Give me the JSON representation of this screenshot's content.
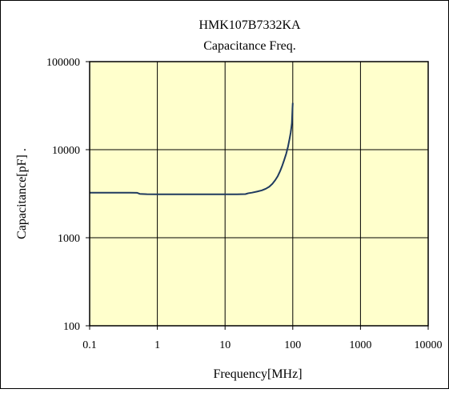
{
  "chart_data": {
    "type": "line",
    "title": "HMK107B7332KA",
    "subtitle": "Capacitance Freq.",
    "xlabel": "Frequency[MHz]",
    "ylabel": "Capacitance[pF] .",
    "x_scale": "log",
    "y_scale": "log",
    "xlim": [
      0.1,
      10000
    ],
    "ylim": [
      100,
      100000
    ],
    "x_ticks": [
      0.1,
      1,
      10,
      100,
      1000,
      10000
    ],
    "x_tick_labels": [
      "0.1",
      "1",
      "10",
      "100",
      "1000",
      "10000"
    ],
    "y_ticks": [
      100,
      1000,
      10000,
      100000
    ],
    "y_tick_labels": [
      "100",
      "1000",
      "10000",
      "100000"
    ],
    "grid": true,
    "plot_background": "#ffffcc",
    "series": [
      {
        "color": "#1f3a5f",
        "x": [
          0.1,
          0.2,
          0.4,
          0.5,
          0.55,
          0.7,
          1,
          2,
          5,
          10,
          15,
          20,
          22,
          25,
          30,
          35,
          40,
          45,
          50,
          55,
          60,
          65,
          70,
          75,
          80,
          85,
          90,
          93,
          95,
          97,
          98,
          99,
          100
        ],
        "y": [
          3250,
          3250,
          3250,
          3240,
          3150,
          3120,
          3110,
          3110,
          3110,
          3110,
          3115,
          3130,
          3200,
          3250,
          3350,
          3450,
          3600,
          3800,
          4100,
          4500,
          5000,
          5700,
          6600,
          7700,
          9000,
          10800,
          13500,
          15500,
          17500,
          20000,
          24000,
          29000,
          34000
        ]
      }
    ]
  }
}
